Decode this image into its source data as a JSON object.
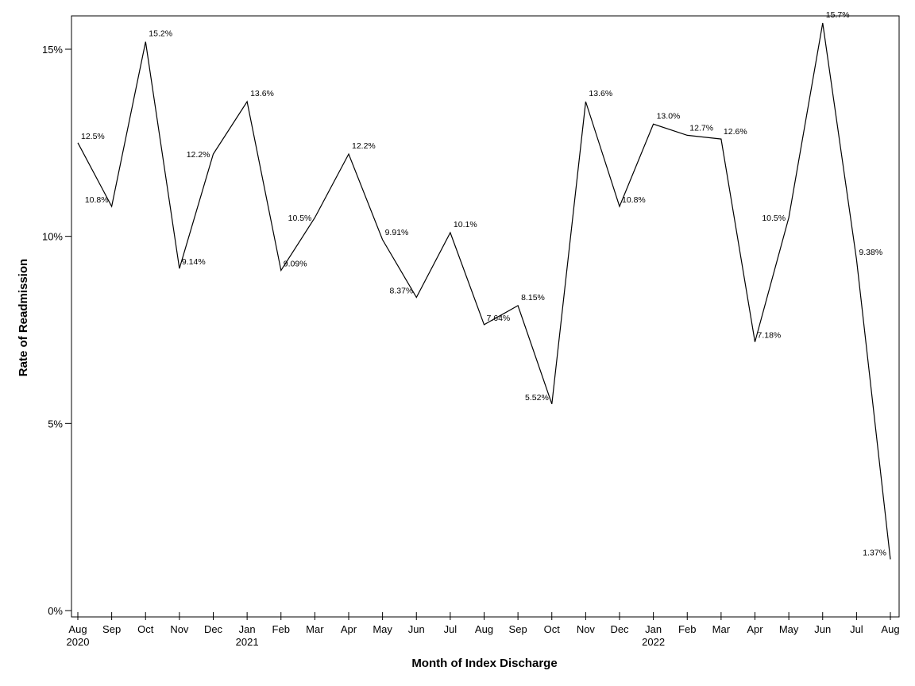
{
  "chart_data": {
    "type": "line",
    "xlabel": "Month of Index Discharge",
    "ylabel": "Rate of Readmission",
    "ylim": [
      0,
      16
    ],
    "yticks": [
      0,
      5,
      10,
      15
    ],
    "ytick_labels": [
      "0%",
      "5%",
      "10%",
      "15%"
    ],
    "grid": false,
    "categories": [
      "Aug",
      "Sep",
      "Oct",
      "Nov",
      "Dec",
      "Jan",
      "Feb",
      "Mar",
      "Apr",
      "May",
      "Jun",
      "Jul",
      "Aug",
      "Sep",
      "Oct",
      "Nov",
      "Dec",
      "Jan",
      "Feb",
      "Mar",
      "Apr",
      "May",
      "Jun",
      "Jul",
      "Aug"
    ],
    "year_labels": [
      "2020",
      "",
      "",
      "",
      "",
      "2021",
      "",
      "",
      "",
      "",
      "",
      "",
      "",
      "",
      "",
      "",
      "",
      "2022",
      "",
      "",
      "",
      "",
      "",
      "",
      ""
    ],
    "series": [
      {
        "values": [
          12.5,
          10.8,
          15.2,
          9.14,
          12.2,
          13.6,
          9.09,
          10.5,
          12.2,
          9.91,
          8.37,
          10.1,
          7.64,
          8.15,
          5.52,
          13.6,
          10.8,
          13.0,
          12.7,
          12.6,
          7.18,
          10.5,
          15.7,
          9.38,
          1.37
        ],
        "labels": [
          "12.5%",
          "10.8%",
          "15.2%",
          "9.14%",
          "12.2%",
          "13.6%",
          "9.09%",
          "10.5%",
          "12.2%",
          "9.91%",
          "8.37%",
          "10.1%",
          "7.64%",
          "8.15%",
          "5.52%",
          "13.6%",
          "10.8%",
          "13.0%",
          "12.7%",
          "12.6%",
          "7.18%",
          "10.5%",
          "15.7%",
          "9.38%",
          "1.37%"
        ]
      }
    ]
  }
}
